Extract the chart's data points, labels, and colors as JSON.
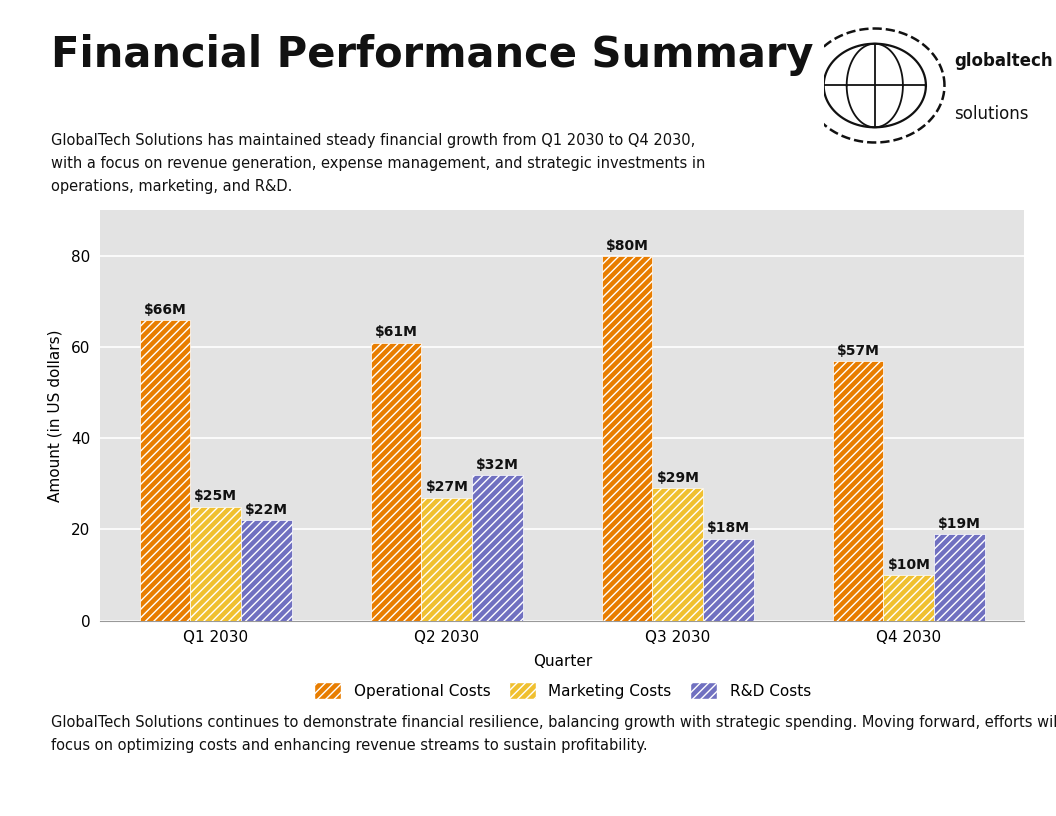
{
  "title": "Financial Performance Summary",
  "subtitle": "GlobalTech Solutions has maintained steady financial growth from Q1 2030 to Q4 2030,\nwith a focus on revenue generation, expense management, and strategic investments in\noperations, marketing, and R&D.",
  "footer": "GlobalTech Solutions continues to demonstrate financial resilience, balancing growth with strategic spending. Moving forward, efforts will\nfocus on optimizing costs and enhancing revenue streams to sustain profitability.",
  "quarters": [
    "Q1 2030",
    "Q2 2030",
    "Q3 2030",
    "Q4 2030"
  ],
  "operational_costs": [
    66,
    61,
    80,
    57
  ],
  "marketing_costs": [
    25,
    27,
    29,
    10
  ],
  "rd_costs": [
    22,
    32,
    18,
    19
  ],
  "operational_color": "#E87D00",
  "marketing_color": "#F0C030",
  "rd_color": "#7070C0",
  "xlabel": "Quarter",
  "ylabel": "Amount (in US dollars)",
  "ylim": [
    0,
    90
  ],
  "yticks": [
    0,
    20,
    40,
    60,
    80
  ],
  "legend_labels": [
    "Operational Costs",
    "Marketing Costs",
    "R&D Costs"
  ],
  "chart_bg": "#E3E3E3",
  "outer_bg": "#FFFFFF",
  "bar_width": 0.22,
  "title_fontsize": 30,
  "subtitle_fontsize": 10.5,
  "footer_fontsize": 10.5,
  "axis_label_fontsize": 11,
  "tick_fontsize": 11,
  "annotation_fontsize": 10,
  "legend_fontsize": 11
}
